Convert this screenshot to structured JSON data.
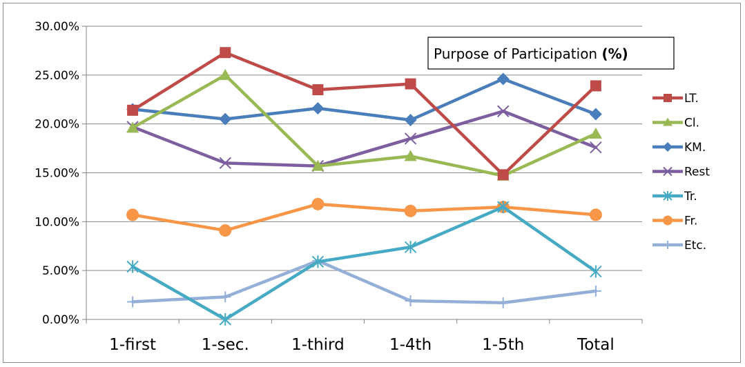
{
  "chart_data": {
    "type": "line",
    "title": "Purpose of Participation ",
    "title_bold": "(%)",
    "xlabel": "",
    "ylabel": "",
    "categories": [
      "1-first",
      "1-sec.",
      "1-third",
      "1-4th",
      "1-5th",
      "Total"
    ],
    "ylim": [
      0,
      30
    ],
    "yticks": [
      0,
      5,
      10,
      15,
      20,
      25,
      30
    ],
    "ytick_labels": [
      "0.00%",
      "5.00%",
      "10.00%",
      "15.00%",
      "20.00%",
      "25.00%",
      "30.00%"
    ],
    "grid": "horizontal",
    "legend_position": "right",
    "series": [
      {
        "name": "LT.",
        "color": "#be4b48",
        "marker": "square",
        "values": [
          21.4,
          27.3,
          23.5,
          24.1,
          14.8,
          23.9
        ]
      },
      {
        "name": "Cl.",
        "color": "#98b954",
        "marker": "triangle",
        "values": [
          19.6,
          25.0,
          15.7,
          16.7,
          14.7,
          19.0
        ]
      },
      {
        "name": "KM.",
        "color": "#4a7ebb",
        "marker": "diamond",
        "values": [
          21.5,
          20.5,
          21.6,
          20.4,
          24.6,
          21.0
        ]
      },
      {
        "name": "Rest",
        "color": "#7d5fa0",
        "marker": "x",
        "values": [
          19.7,
          16.0,
          15.7,
          18.5,
          21.3,
          17.6
        ]
      },
      {
        "name": "Tr.",
        "color": "#46aac5",
        "marker": "star",
        "values": [
          5.4,
          0.0,
          5.9,
          7.4,
          11.5,
          4.9
        ]
      },
      {
        "name": "Fr.",
        "color": "#f79646",
        "marker": "circle",
        "values": [
          10.7,
          9.1,
          11.8,
          11.1,
          11.5,
          10.7
        ]
      },
      {
        "name": "Etc.",
        "color": "#94afd8",
        "marker": "plus",
        "values": [
          1.8,
          2.3,
          6.0,
          1.9,
          1.7,
          2.9
        ]
      }
    ]
  }
}
